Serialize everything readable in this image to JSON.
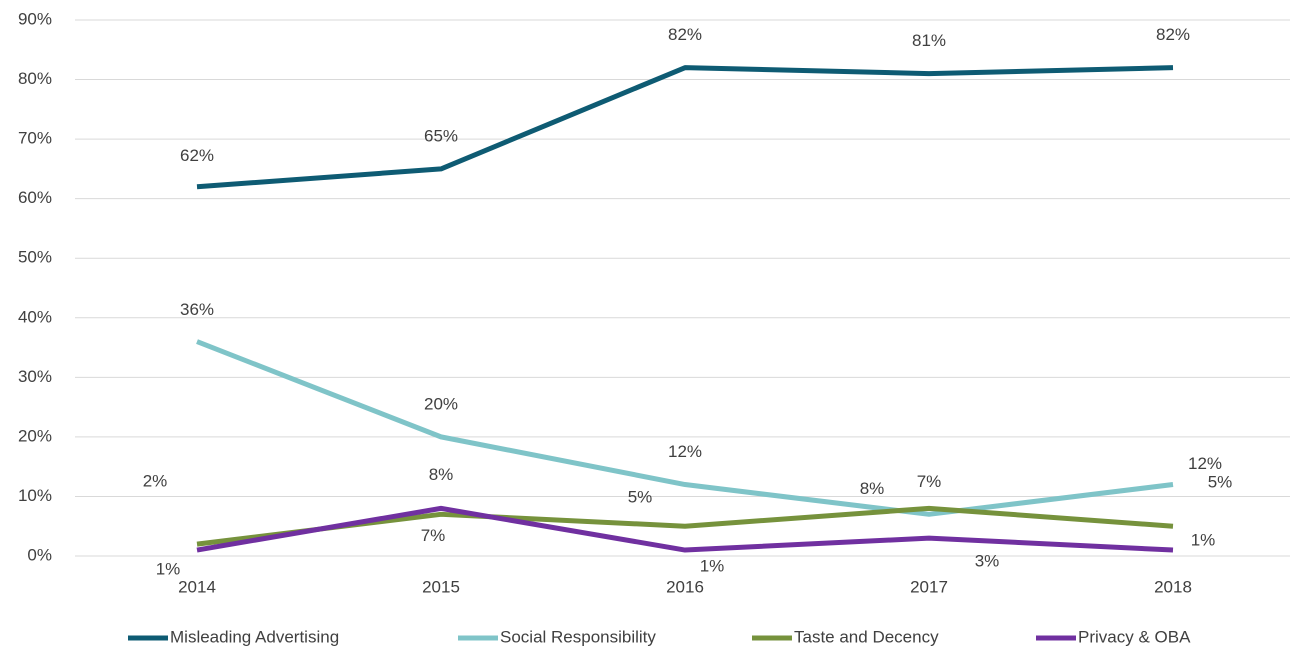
{
  "chart_data": {
    "type": "line",
    "categories": [
      "2014",
      "2015",
      "2016",
      "2017",
      "2018"
    ],
    "series": [
      {
        "name": "Misleading Advertising",
        "color": "#0e5b73",
        "values": [
          62,
          65,
          82,
          81,
          82
        ],
        "value_labels": [
          "62%",
          "65%",
          "82%",
          "81%",
          "82%"
        ]
      },
      {
        "name": "Social Responsibility",
        "color": "#7fc4c8",
        "values": [
          36,
          20,
          12,
          7,
          12
        ],
        "value_labels": [
          "36%",
          "20%",
          "12%",
          "7%",
          "12%"
        ]
      },
      {
        "name": "Taste and Decency",
        "color": "#76923c",
        "values": [
          2,
          7,
          5,
          8,
          5
        ],
        "value_labels": [
          "2%",
          "7%",
          "5%",
          "8%",
          "5%"
        ]
      },
      {
        "name": "Privacy & OBA",
        "color": "#7030a0",
        "values": [
          1,
          8,
          1,
          3,
          1
        ],
        "value_labels": [
          "1%",
          "8%",
          "1%",
          "3%",
          "1%"
        ]
      }
    ],
    "ylim": [
      0,
      90
    ],
    "yticks": [
      {
        "value": 0,
        "label": "0%"
      },
      {
        "value": 10,
        "label": "10%"
      },
      {
        "value": 20,
        "label": "20%"
      },
      {
        "value": 30,
        "label": "30%"
      },
      {
        "value": 40,
        "label": "40%"
      },
      {
        "value": 50,
        "label": "50%"
      },
      {
        "value": 60,
        "label": "60%"
      },
      {
        "value": 70,
        "label": "70%"
      },
      {
        "value": 80,
        "label": "80%"
      },
      {
        "value": 90,
        "label": "90%"
      }
    ],
    "grid": true,
    "legend": "bottom"
  }
}
